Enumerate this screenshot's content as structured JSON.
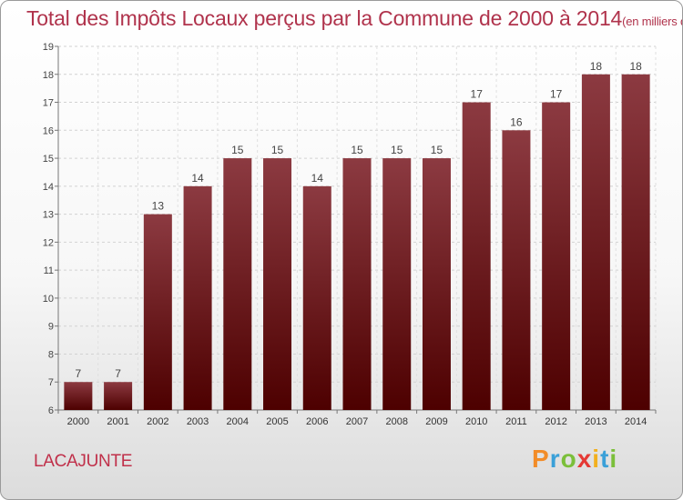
{
  "header": {
    "title": "Total des Impôts Locaux perçus par la Commune de 2000 à 2014",
    "unit": "(en milliers d'€)"
  },
  "footer": {
    "commune": "LACAJUNTE",
    "logo_text": "Proxiti",
    "logo_colors": [
      "#f28c28",
      "#3aa0d8",
      "#7bbf3a",
      "#e53935",
      "#f2b01e",
      "#3aa0d8",
      "#7bbf3a"
    ]
  },
  "colors": {
    "bar_top": "#8c3a41",
    "bar_bottom": "#4d0000",
    "title": "#b0334c"
  },
  "chart_data": {
    "type": "bar",
    "categories": [
      "2000",
      "2001",
      "2002",
      "2003",
      "2004",
      "2005",
      "2006",
      "2007",
      "2008",
      "2009",
      "2010",
      "2011",
      "2012",
      "2013",
      "2014"
    ],
    "values": [
      7,
      7,
      13,
      14,
      15,
      15,
      14,
      15,
      15,
      15,
      17,
      16,
      17,
      18,
      18
    ],
    "ylim": [
      6,
      19
    ],
    "yticks": [
      6,
      7,
      8,
      9,
      10,
      11,
      12,
      13,
      14,
      15,
      16,
      17,
      18,
      19
    ],
    "grid": true
  }
}
